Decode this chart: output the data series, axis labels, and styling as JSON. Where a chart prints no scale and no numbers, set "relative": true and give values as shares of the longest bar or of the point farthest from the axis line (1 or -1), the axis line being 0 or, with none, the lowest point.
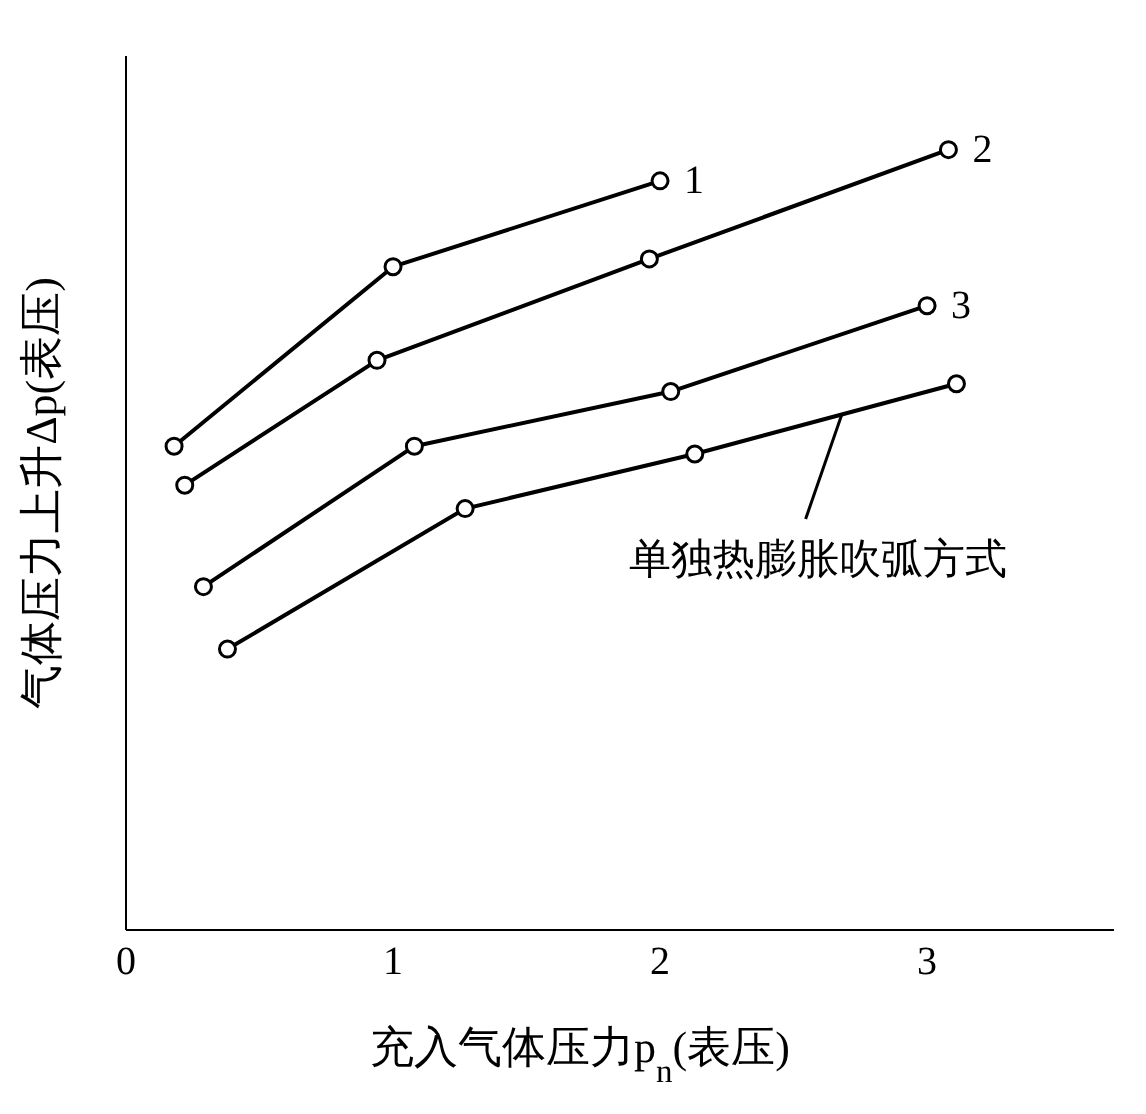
{
  "chart_data": {
    "type": "line",
    "xlabel": "充入气体压力p$_{n}$(表压)",
    "ylabel": "气体压力上升Δp(表压)",
    "relative": true,
    "xlim": [
      0,
      3.7
    ],
    "xticks": [
      0,
      1,
      2,
      3
    ],
    "marker": "circle",
    "line_style": "solid",
    "grid": false,
    "legend": false,
    "series": [
      {
        "name": "1",
        "color": "#000000",
        "x": [
          0.18,
          1.0,
          2.0
        ],
        "values": [
          0.62,
          0.85,
          0.96
        ]
      },
      {
        "name": "2",
        "color": "#000000",
        "x": [
          0.22,
          0.94,
          1.96,
          3.08
        ],
        "values": [
          0.57,
          0.73,
          0.86,
          1
        ]
      },
      {
        "name": "3",
        "color": "#000000",
        "x": [
          0.29,
          1.08,
          2.04,
          3.0
        ],
        "values": [
          0.44,
          0.62,
          0.69,
          0.8
        ]
      },
      {
        "color": "#000000",
        "x": [
          0.38,
          1.27,
          2.13,
          3.11
        ],
        "values": [
          0.36,
          0.54,
          0.61,
          0.7
        ]
      }
    ],
    "annotations": [
      {
        "text": "单独热膨胀吹弧方式",
        "x": 2.68,
        "y": 0.66
      }
    ]
  }
}
